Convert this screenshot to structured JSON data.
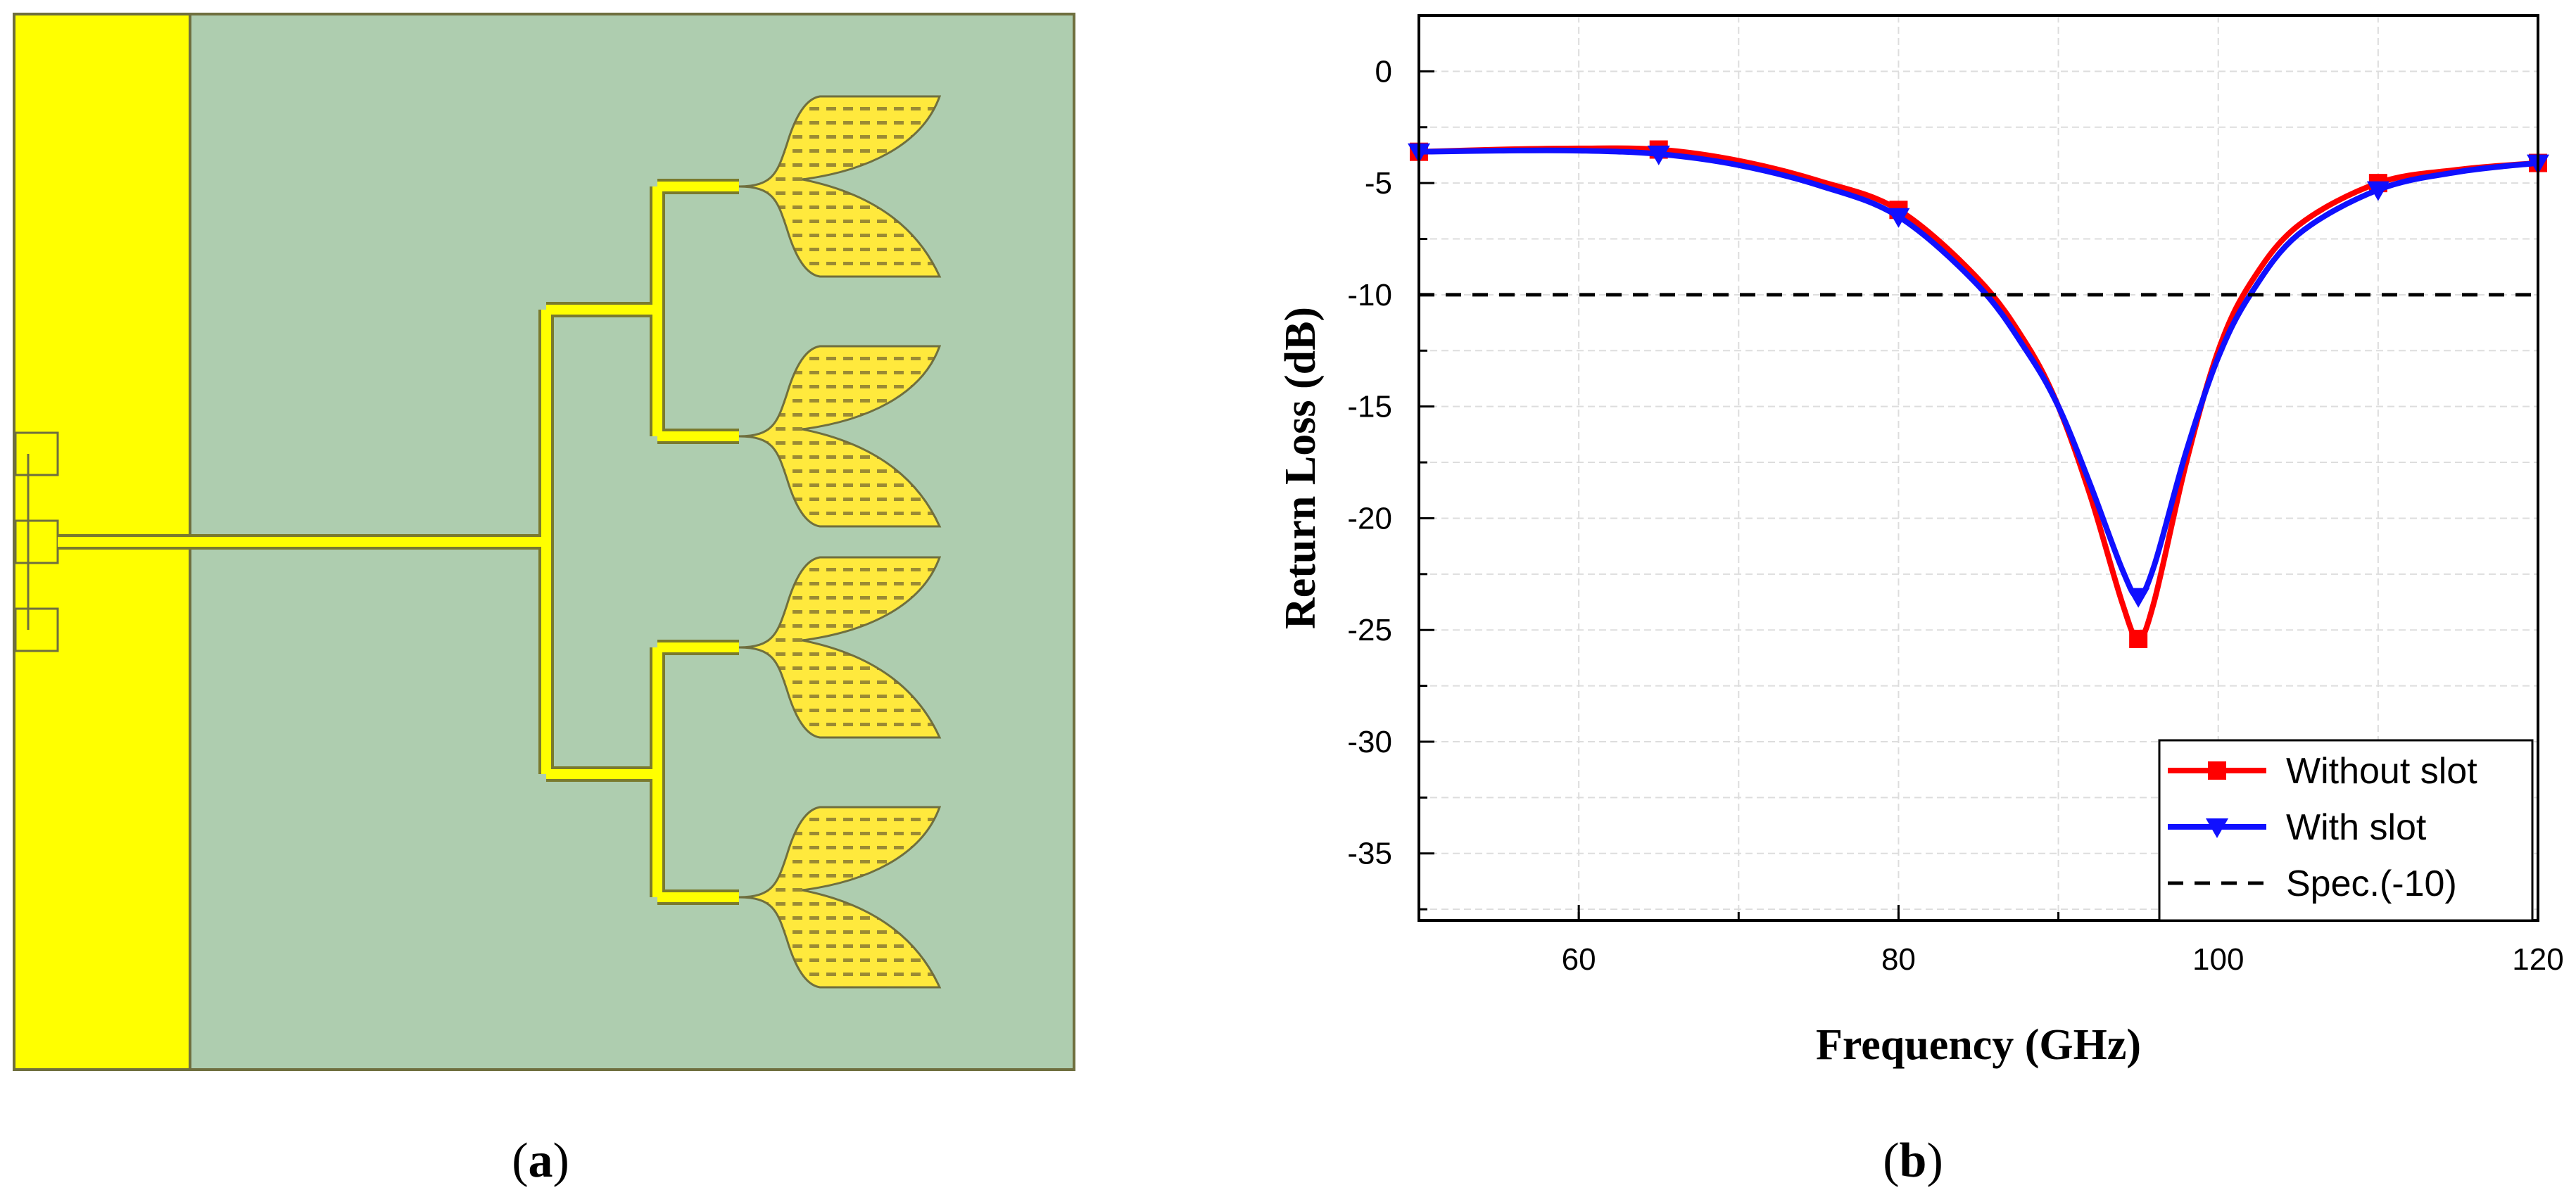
{
  "panels": {
    "a": {
      "label": "(a)",
      "label_letter": "a"
    },
    "b": {
      "label": "(b)",
      "label_letter": "b"
    }
  },
  "colors": {
    "substrate": "#aecdaf",
    "feed_strip": "#ffff00",
    "copper": "#ffe93d",
    "outline": "#6f6f3f",
    "series_without_slot": "#ff0000",
    "series_with_slot": "#1010ff",
    "spec_line": "#000000"
  },
  "chart_data": {
    "type": "line",
    "title": "",
    "xlabel": "Frequency (GHz)",
    "ylabel": "Return Loss (dB)",
    "xlim": [
      50,
      120
    ],
    "ylim": [
      -38,
      2.5
    ],
    "xticks": [
      60,
      80,
      100,
      120
    ],
    "yticks": [
      0,
      -5,
      -10,
      -15,
      -20,
      -25,
      -30,
      -35
    ],
    "grid": true,
    "legend_position": "bottom-right",
    "series": [
      {
        "name": "Without slot",
        "marker": "square",
        "color": "#ff0000",
        "x": [
          50,
          55,
          60,
          65,
          70,
          75,
          80,
          85,
          88,
          90,
          92,
          94,
          95,
          96,
          98,
          100,
          102,
          105,
          110,
          115,
          120
        ],
        "y": [
          -3.6,
          -3.5,
          -3.45,
          -3.5,
          -4.0,
          -4.9,
          -6.2,
          -9.3,
          -12.2,
          -15.0,
          -19.0,
          -23.8,
          -25.4,
          -23.7,
          -17.5,
          -12.5,
          -9.5,
          -6.9,
          -5.0,
          -4.4,
          -4.1
        ],
        "marker_x": [
          50,
          65,
          80,
          95,
          110,
          120
        ],
        "marker_y": [
          -3.6,
          -3.5,
          -6.2,
          -25.4,
          -5.0,
          -4.1
        ]
      },
      {
        "name": "With slot",
        "marker": "triangle-down",
        "color": "#1010ff",
        "x": [
          50,
          55,
          60,
          65,
          70,
          75,
          80,
          85,
          88,
          90,
          92,
          94,
          95,
          96,
          98,
          100,
          102,
          105,
          110,
          115,
          120
        ],
        "y": [
          -3.6,
          -3.55,
          -3.55,
          -3.7,
          -4.2,
          -5.1,
          -6.5,
          -9.6,
          -12.5,
          -15.0,
          -18.5,
          -22.3,
          -23.5,
          -22.1,
          -17.0,
          -12.8,
          -10.0,
          -7.3,
          -5.3,
          -4.5,
          -4.1
        ],
        "marker_x": [
          50,
          65,
          80,
          95,
          110,
          120
        ],
        "marker_y": [
          -3.6,
          -3.7,
          -6.5,
          -23.5,
          -5.3,
          -4.1
        ]
      },
      {
        "name": "Spec.(-10)",
        "marker": "none",
        "line_style": "dashed",
        "color": "#000000",
        "x": [
          50,
          120
        ],
        "y": [
          -10,
          -10
        ]
      }
    ]
  }
}
